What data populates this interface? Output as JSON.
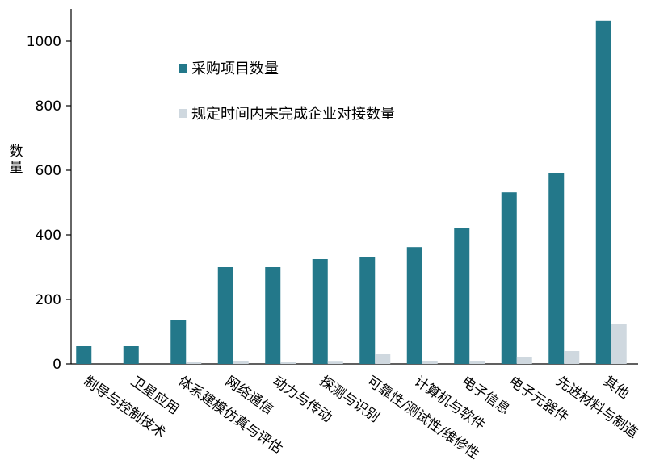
{
  "chart_data": {
    "type": "bar",
    "ylabel": "数量",
    "ylim": [
      0,
      1100
    ],
    "yticks": [
      0,
      200,
      400,
      600,
      800,
      1000
    ],
    "grid": false,
    "legend_position": "upper-left inside plot",
    "categories": [
      "制导与控制技术",
      "卫星应用",
      "体系建模仿真与评估",
      "网络通信",
      "动力与传动",
      "探测与识别",
      "可靠性/测试性/维修性",
      "计算机与软件",
      "电子信息",
      "电子元器件",
      "先进材料与制造",
      "其他"
    ],
    "series": [
      {
        "name": "采购项目数量",
        "color": "#23788a",
        "values": [
          55,
          55,
          135,
          300,
          300,
          325,
          332,
          362,
          422,
          532,
          592,
          1063
        ]
      },
      {
        "name": "规定时间内未完成企业对接数量",
        "color": "#cfd8df",
        "values": [
          0,
          0,
          5,
          8,
          5,
          7,
          30,
          10,
          10,
          20,
          40,
          125
        ]
      }
    ]
  }
}
